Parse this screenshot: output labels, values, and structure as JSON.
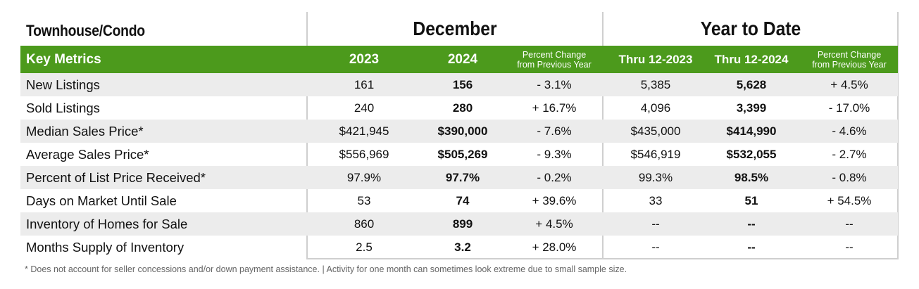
{
  "title": {
    "section": "Townhouse/Condo",
    "group1": "December",
    "group2": "Year to Date"
  },
  "header": {
    "key_metrics": "Key Metrics",
    "col_2023": "2023",
    "col_2024": "2024",
    "pct_change_line1": "Percent Change",
    "pct_change_line2": "from Previous Year",
    "thru_2023": "Thru 12-2023",
    "thru_2024": "Thru 12-2024"
  },
  "colors": {
    "header_green": "#4c9a1c",
    "alt_row": "#ececec"
  },
  "rows": [
    {
      "label": "New Listings",
      "d2023": "161",
      "d2024": "156",
      "dpct": "- 3.1%",
      "y2023": "5,385",
      "y2024": "5,628",
      "ypct": "+ 4.5%"
    },
    {
      "label": "Sold Listings",
      "d2023": "240",
      "d2024": "280",
      "dpct": "+ 16.7%",
      "y2023": "4,096",
      "y2024": "3,399",
      "ypct": "- 17.0%"
    },
    {
      "label": "Median Sales Price*",
      "d2023": "$421,945",
      "d2024": "$390,000",
      "dpct": "- 7.6%",
      "y2023": "$435,000",
      "y2024": "$414,990",
      "ypct": "- 4.6%"
    },
    {
      "label": "Average Sales Price*",
      "d2023": "$556,969",
      "d2024": "$505,269",
      "dpct": "- 9.3%",
      "y2023": "$546,919",
      "y2024": "$532,055",
      "ypct": "- 2.7%"
    },
    {
      "label": "Percent of List Price Received*",
      "d2023": "97.9%",
      "d2024": "97.7%",
      "dpct": "- 0.2%",
      "y2023": "99.3%",
      "y2024": "98.5%",
      "ypct": "- 0.8%"
    },
    {
      "label": "Days on Market Until Sale",
      "d2023": "53",
      "d2024": "74",
      "dpct": "+ 39.6%",
      "y2023": "33",
      "y2024": "51",
      "ypct": "+ 54.5%"
    },
    {
      "label": "Inventory of Homes for Sale",
      "d2023": "860",
      "d2024": "899",
      "dpct": "+ 4.5%",
      "y2023": "--",
      "y2024": "--",
      "ypct": "--"
    },
    {
      "label": "Months Supply of Inventory",
      "d2023": "2.5",
      "d2024": "3.2",
      "dpct": "+ 28.0%",
      "y2023": "--",
      "y2024": "--",
      "ypct": "--"
    }
  ],
  "footnote": "* Does not account for seller concessions and/or down payment assistance.  |  Activity for one month can sometimes look extreme due to small sample size."
}
